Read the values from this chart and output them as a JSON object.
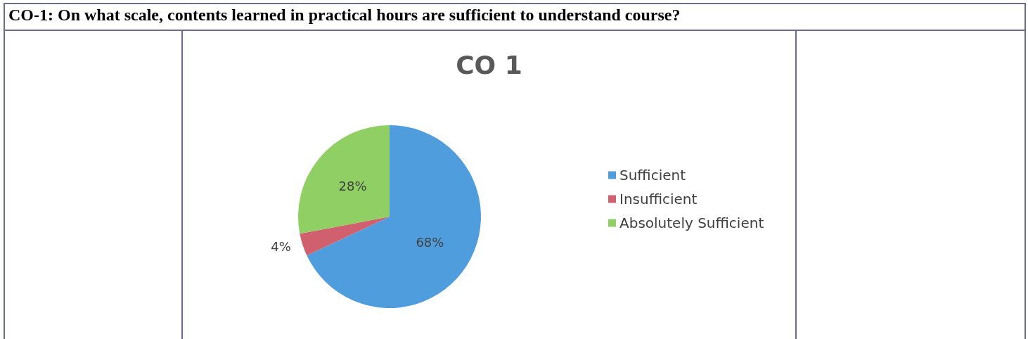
{
  "chart_data": {
    "type": "pie",
    "title": "CO-1: On what scale, contents learned in practical hours are sufficient to understand course?",
    "subtitle": "CO 1",
    "categories": [
      "Sufficient",
      "Insufficient",
      "Absolutely Sufficient"
    ],
    "values": [
      68,
      4,
      28
    ],
    "colors": [
      "#4f9ddc",
      "#d0606e",
      "#8fcf63"
    ],
    "value_labels": [
      "68%",
      "4%",
      "28%"
    ],
    "legend": "right"
  }
}
